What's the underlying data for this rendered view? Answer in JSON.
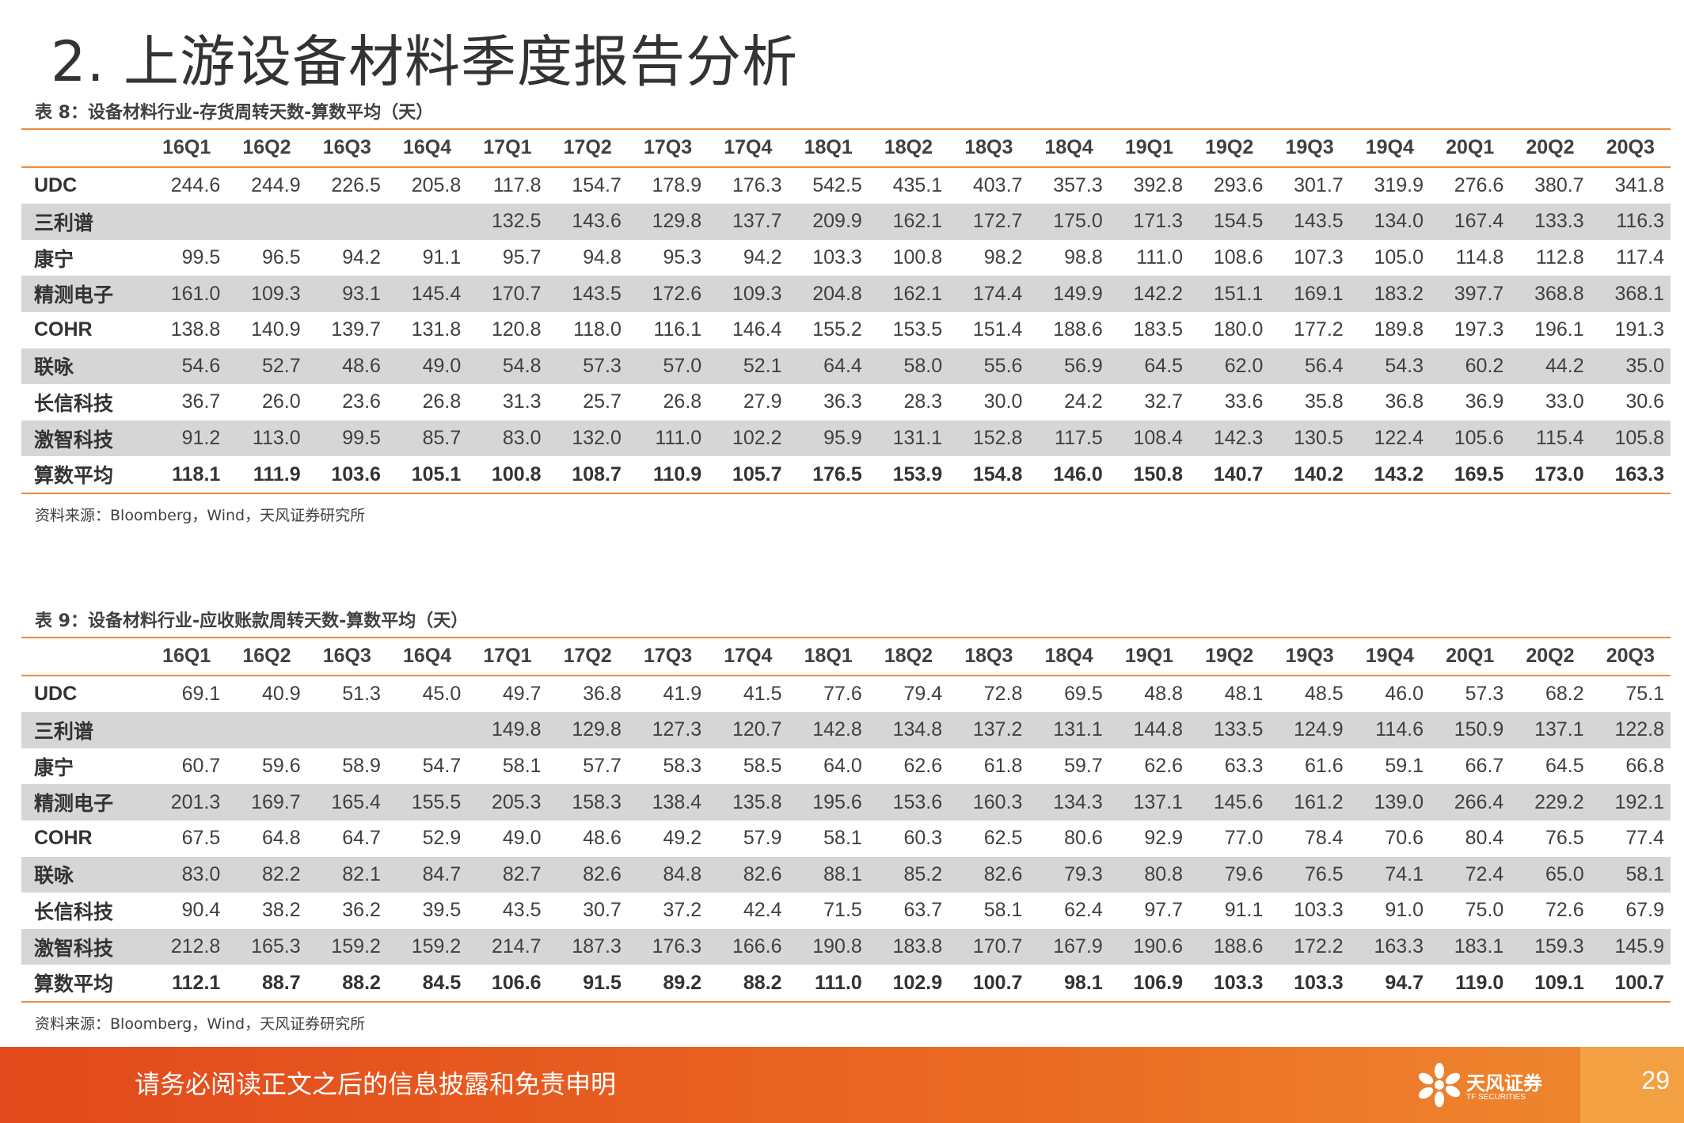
{
  "page_title": "2. 上游设备材料季度报告分析",
  "columns": [
    "16Q1",
    "16Q2",
    "16Q3",
    "16Q4",
    "17Q1",
    "17Q2",
    "17Q3",
    "17Q4",
    "18Q1",
    "18Q2",
    "18Q3",
    "18Q4",
    "19Q1",
    "19Q2",
    "19Q3",
    "19Q4",
    "20Q1",
    "20Q2",
    "20Q3"
  ],
  "tables": [
    {
      "caption": "表 8：设备材料行业-存货周转天数-算数平均（天）",
      "source": "资料来源：Bloomberg，Wind，天风证券研究所",
      "rows": [
        {
          "name": "UDC",
          "values": [
            "244.6",
            "244.9",
            "226.5",
            "205.8",
            "117.8",
            "154.7",
            "178.9",
            "176.3",
            "542.5",
            "435.1",
            "403.7",
            "357.3",
            "392.8",
            "293.6",
            "301.7",
            "319.9",
            "276.6",
            "380.7",
            "341.8"
          ]
        },
        {
          "name": "三利谱",
          "values": [
            "",
            "",
            "",
            "",
            "132.5",
            "143.6",
            "129.8",
            "137.7",
            "209.9",
            "162.1",
            "172.7",
            "175.0",
            "171.3",
            "154.5",
            "143.5",
            "134.0",
            "167.4",
            "133.3",
            "116.3"
          ]
        },
        {
          "name": "康宁",
          "values": [
            "99.5",
            "96.5",
            "94.2",
            "91.1",
            "95.7",
            "94.8",
            "95.3",
            "94.2",
            "103.3",
            "100.8",
            "98.2",
            "98.8",
            "111.0",
            "108.6",
            "107.3",
            "105.0",
            "114.8",
            "112.8",
            "117.4"
          ]
        },
        {
          "name": "精测电子",
          "values": [
            "161.0",
            "109.3",
            "93.1",
            "145.4",
            "170.7",
            "143.5",
            "172.6",
            "109.3",
            "204.8",
            "162.1",
            "174.4",
            "149.9",
            "142.2",
            "151.1",
            "169.1",
            "183.2",
            "397.7",
            "368.8",
            "368.1"
          ]
        },
        {
          "name": "COHR",
          "values": [
            "138.8",
            "140.9",
            "139.7",
            "131.8",
            "120.8",
            "118.0",
            "116.1",
            "146.4",
            "155.2",
            "153.5",
            "151.4",
            "188.6",
            "183.5",
            "180.0",
            "177.2",
            "189.8",
            "197.3",
            "196.1",
            "191.3"
          ]
        },
        {
          "name": "联咏",
          "values": [
            "54.6",
            "52.7",
            "48.6",
            "49.0",
            "54.8",
            "57.3",
            "57.0",
            "52.1",
            "64.4",
            "58.0",
            "55.6",
            "56.9",
            "64.5",
            "62.0",
            "56.4",
            "54.3",
            "60.2",
            "44.2",
            "35.0"
          ]
        },
        {
          "name": "长信科技",
          "values": [
            "36.7",
            "26.0",
            "23.6",
            "26.8",
            "31.3",
            "25.7",
            "26.8",
            "27.9",
            "36.3",
            "28.3",
            "30.0",
            "24.2",
            "32.7",
            "33.6",
            "35.8",
            "36.8",
            "36.9",
            "33.0",
            "30.6"
          ]
        },
        {
          "name": "激智科技",
          "values": [
            "91.2",
            "113.0",
            "99.5",
            "85.7",
            "83.0",
            "132.0",
            "111.0",
            "102.2",
            "95.9",
            "131.1",
            "152.8",
            "117.5",
            "108.4",
            "142.3",
            "130.5",
            "122.4",
            "105.6",
            "115.4",
            "105.8"
          ]
        },
        {
          "name": "算数平均",
          "values": [
            "118.1",
            "111.9",
            "103.6",
            "105.1",
            "100.8",
            "108.7",
            "110.9",
            "105.7",
            "176.5",
            "153.9",
            "154.8",
            "146.0",
            "150.8",
            "140.7",
            "140.2",
            "143.2",
            "169.5",
            "173.0",
            "163.3"
          ]
        }
      ]
    },
    {
      "caption": "表 9：设备材料行业-应收账款周转天数-算数平均（天）",
      "source": "资料来源：Bloomberg，Wind，天风证券研究所",
      "rows": [
        {
          "name": "UDC",
          "values": [
            "69.1",
            "40.9",
            "51.3",
            "45.0",
            "49.7",
            "36.8",
            "41.9",
            "41.5",
            "77.6",
            "79.4",
            "72.8",
            "69.5",
            "48.8",
            "48.1",
            "48.5",
            "46.0",
            "57.3",
            "68.2",
            "75.1"
          ]
        },
        {
          "name": "三利谱",
          "values": [
            "",
            "",
            "",
            "",
            "149.8",
            "129.8",
            "127.3",
            "120.7",
            "142.8",
            "134.8",
            "137.2",
            "131.1",
            "144.8",
            "133.5",
            "124.9",
            "114.6",
            "150.9",
            "137.1",
            "122.8"
          ]
        },
        {
          "name": "康宁",
          "values": [
            "60.7",
            "59.6",
            "58.9",
            "54.7",
            "58.1",
            "57.7",
            "58.3",
            "58.5",
            "64.0",
            "62.6",
            "61.8",
            "59.7",
            "62.6",
            "63.3",
            "61.6",
            "59.1",
            "66.7",
            "64.5",
            "66.8"
          ]
        },
        {
          "name": "精测电子",
          "values": [
            "201.3",
            "169.7",
            "165.4",
            "155.5",
            "205.3",
            "158.3",
            "138.4",
            "135.8",
            "195.6",
            "153.6",
            "160.3",
            "134.3",
            "137.1",
            "145.6",
            "161.2",
            "139.0",
            "266.4",
            "229.2",
            "192.1"
          ]
        },
        {
          "name": "COHR",
          "values": [
            "67.5",
            "64.8",
            "64.7",
            "52.9",
            "49.0",
            "48.6",
            "49.2",
            "57.9",
            "58.1",
            "60.3",
            "62.5",
            "80.6",
            "92.9",
            "77.0",
            "78.4",
            "70.6",
            "80.4",
            "76.5",
            "77.4"
          ]
        },
        {
          "name": "联咏",
          "values": [
            "83.0",
            "82.2",
            "82.1",
            "84.7",
            "82.7",
            "82.6",
            "84.8",
            "82.6",
            "88.1",
            "85.2",
            "82.6",
            "79.3",
            "80.8",
            "79.6",
            "76.5",
            "74.1",
            "72.4",
            "65.0",
            "58.1"
          ]
        },
        {
          "name": "长信科技",
          "values": [
            "90.4",
            "38.2",
            "36.2",
            "39.5",
            "43.5",
            "30.7",
            "37.2",
            "42.4",
            "71.5",
            "63.7",
            "58.1",
            "62.4",
            "97.7",
            "91.1",
            "103.3",
            "91.0",
            "75.0",
            "72.6",
            "67.9"
          ]
        },
        {
          "name": "激智科技",
          "values": [
            "212.8",
            "165.3",
            "159.2",
            "159.2",
            "214.7",
            "187.3",
            "176.3",
            "166.6",
            "190.8",
            "183.8",
            "170.7",
            "167.9",
            "190.6",
            "188.6",
            "172.2",
            "163.3",
            "183.1",
            "159.3",
            "145.9"
          ]
        },
        {
          "name": "算数平均",
          "values": [
            "112.1",
            "88.7",
            "88.2",
            "84.5",
            "106.6",
            "91.5",
            "89.2",
            "88.2",
            "111.0",
            "102.9",
            "100.7",
            "98.1",
            "106.9",
            "103.3",
            "103.3",
            "94.7",
            "119.0",
            "109.1",
            "100.7"
          ]
        }
      ]
    }
  ],
  "footer": {
    "disclaimer": "请务必阅读正文之后的信息披露和免责申明",
    "logo_text": "天风证券",
    "logo_sub": "TF SECURITIES",
    "page_number": "29"
  },
  "colors": {
    "accent": "#ee8a3b",
    "shade": "#d6d6d6",
    "footer": "#e85a1f"
  }
}
